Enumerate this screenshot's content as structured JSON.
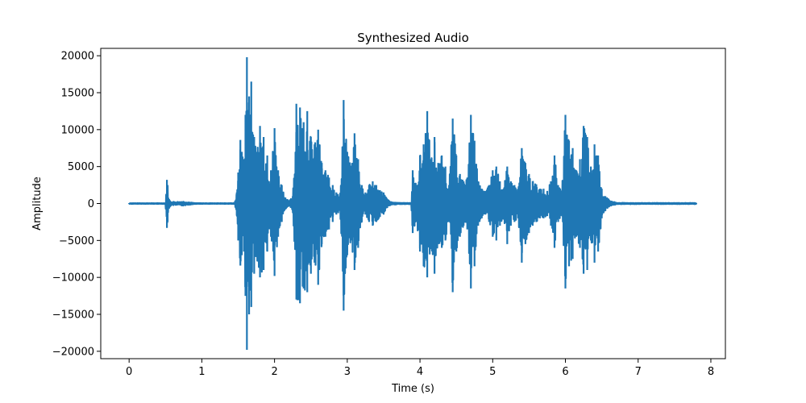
{
  "chart_data": {
    "type": "line",
    "title": "Synthesized Audio",
    "xlabel": "Time (s)",
    "ylabel": "Amplitude",
    "xlim": [
      -0.39,
      8.2
    ],
    "ylim": [
      -21000,
      21000
    ],
    "xticks": [
      0,
      1,
      2,
      3,
      4,
      5,
      6,
      7,
      8
    ],
    "xtick_labels": [
      "0",
      "1",
      "2",
      "3",
      "4",
      "5",
      "6",
      "7",
      "8"
    ],
    "yticks": [
      20000,
      15000,
      10000,
      5000,
      0,
      -5000,
      -10000,
      -15000,
      -20000
    ],
    "ytick_labels": [
      "20000",
      "15000",
      "10000",
      "5000",
      "0",
      "−5000",
      "−10000",
      "−15000",
      "−20000"
    ],
    "grid": false,
    "legend": "none",
    "series": [
      {
        "color": "#1f77b4",
        "envelope": {
          "t": [
            0.0,
            0.5,
            0.52,
            0.53,
            0.55,
            0.57,
            0.6,
            0.7,
            0.72,
            0.78,
            0.85,
            0.9,
            1.0,
            1.2,
            1.45,
            1.48,
            1.5,
            1.53,
            1.55,
            1.58,
            1.6,
            1.62,
            1.65,
            1.68,
            1.72,
            1.75,
            1.8,
            1.85,
            1.9,
            1.95,
            2.0,
            2.05,
            2.1,
            2.15,
            2.2,
            2.25,
            2.3,
            2.35,
            2.4,
            2.45,
            2.5,
            2.55,
            2.6,
            2.65,
            2.7,
            2.75,
            2.8,
            2.85,
            2.9,
            2.95,
            3.0,
            3.05,
            3.1,
            3.15,
            3.2,
            3.25,
            3.3,
            3.35,
            3.4,
            3.45,
            3.5,
            3.55,
            3.6,
            3.7,
            3.8,
            3.88,
            3.9,
            3.95,
            4.0,
            4.05,
            4.1,
            4.15,
            4.2,
            4.25,
            4.3,
            4.35,
            4.4,
            4.45,
            4.5,
            4.55,
            4.6,
            4.65,
            4.7,
            4.75,
            4.8,
            4.85,
            4.9,
            4.95,
            5.0,
            5.05,
            5.1,
            5.15,
            5.2,
            5.25,
            5.3,
            5.35,
            5.4,
            5.45,
            5.5,
            5.55,
            5.6,
            5.65,
            5.7,
            5.75,
            5.8,
            5.85,
            5.9,
            5.95,
            6.0,
            6.05,
            6.1,
            6.15,
            6.2,
            6.25,
            6.3,
            6.35,
            6.4,
            6.45,
            6.5,
            6.55,
            6.6,
            6.7,
            7.0,
            7.5,
            7.8
          ],
          "pos": [
            50,
            50,
            3200,
            2500,
            600,
            300,
            250,
            250,
            300,
            250,
            150,
            60,
            50,
            50,
            50,
            1500,
            4200,
            8600,
            7000,
            6000,
            12000,
            19800,
            14500,
            16500,
            9000,
            7000,
            10500,
            9000,
            6500,
            4500,
            10200,
            4500,
            2500,
            800,
            300,
            1000,
            13500,
            13000,
            11000,
            12500,
            9000,
            8000,
            10000,
            5500,
            4500,
            3500,
            2500,
            1500,
            1000,
            14000,
            7000,
            5000,
            9500,
            6000,
            2500,
            1500,
            2500,
            3000,
            2500,
            1800,
            1500,
            600,
            200,
            100,
            100,
            100,
            4500,
            2500,
            6500,
            8000,
            12500,
            6000,
            9000,
            5500,
            6500,
            5000,
            2500,
            11500,
            6500,
            4000,
            3000,
            3500,
            12000,
            8500,
            3000,
            2000,
            1700,
            2500,
            4500,
            5000,
            3000,
            2000,
            5000,
            3000,
            2500,
            2000,
            7500,
            5500,
            4000,
            3000,
            2600,
            2000,
            2000,
            1700,
            3000,
            6500,
            2500,
            1500,
            12000,
            8500,
            7500,
            4500,
            6000,
            10500,
            9000,
            5000,
            8000,
            6500,
            2000,
            1000,
            500,
            100,
            80,
            80,
            80
          ],
          "neg": [
            -50,
            -50,
            -3300,
            -2500,
            -700,
            -300,
            -250,
            -250,
            -300,
            -250,
            -150,
            -60,
            -50,
            -50,
            -50,
            -1600,
            -5000,
            -8400,
            -7000,
            -6500,
            -12500,
            -19800,
            -15000,
            -14000,
            -9500,
            -7000,
            -10000,
            -9000,
            -6500,
            -4500,
            -9800,
            -4500,
            -2500,
            -800,
            -300,
            -1000,
            -13000,
            -13500,
            -11500,
            -12000,
            -9500,
            -8000,
            -11000,
            -5500,
            -4500,
            -3500,
            -2500,
            -1500,
            -1000,
            -14500,
            -7000,
            -5000,
            -9000,
            -6000,
            -2500,
            -1500,
            -2500,
            -3000,
            -2500,
            -1800,
            -1500,
            -600,
            -200,
            -100,
            -100,
            -100,
            -4000,
            -2500,
            -6500,
            -8500,
            -10000,
            -6000,
            -9500,
            -5500,
            -6000,
            -5000,
            -2500,
            -12000,
            -6500,
            -4500,
            -3000,
            -3500,
            -11500,
            -8500,
            -3000,
            -2000,
            -1500,
            -2500,
            -4500,
            -5000,
            -3000,
            -2000,
            -5500,
            -3000,
            -2500,
            -2000,
            -8000,
            -5500,
            -4000,
            -3000,
            -2500,
            -2000,
            -2000,
            -1700,
            -3000,
            -6000,
            -2500,
            -1500,
            -11500,
            -8500,
            -7500,
            -4500,
            -6000,
            -9500,
            -9000,
            -5000,
            -8000,
            -6500,
            -2000,
            -1000,
            -500,
            -100,
            -80,
            -80,
            -80
          ]
        }
      }
    ]
  }
}
